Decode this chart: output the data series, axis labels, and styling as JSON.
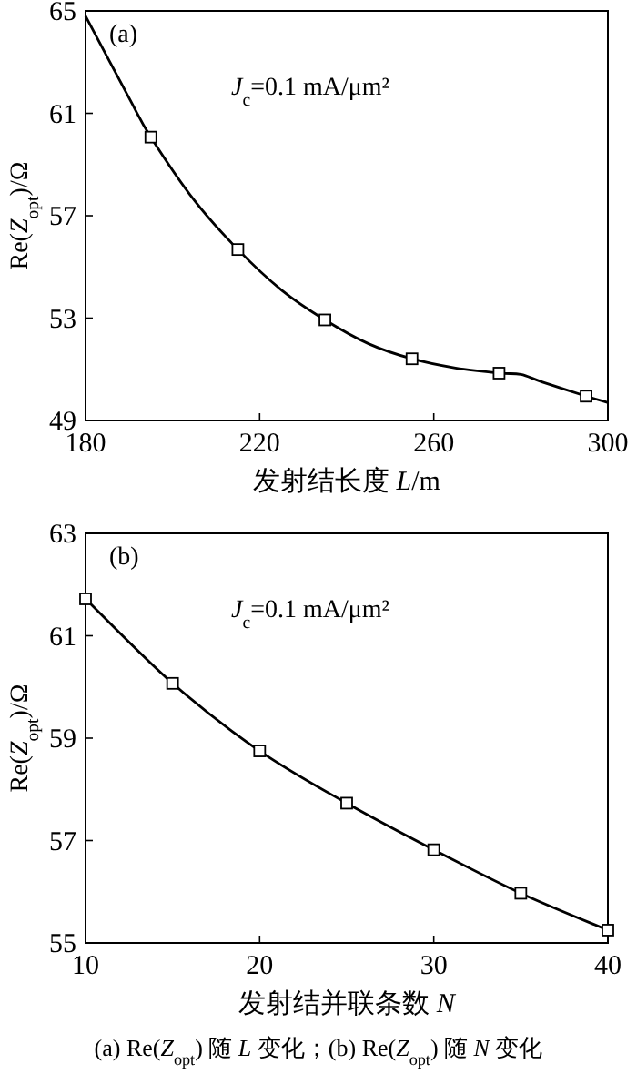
{
  "chart_data": [
    {
      "type": "line",
      "xlabel": "发射结长度 *L*/m",
      "ylabel": "Re(*Z*$_{opt}$)/Ω",
      "annotations": [
        "(a)",
        "*J*$_{c}$=0.1 mA/μm²"
      ],
      "xlim": [
        180,
        300
      ],
      "xticks": [
        180,
        220,
        260,
        300
      ],
      "ylim": [
        49,
        65
      ],
      "yticks": [
        49,
        53,
        57,
        61,
        65
      ],
      "grid": false,
      "series": [
        {
          "type": "line",
          "color": "#000000",
          "marker": "none",
          "x": [
            180,
            190,
            195,
            205,
            215,
            225,
            235,
            245,
            255,
            265,
            275,
            280,
            285,
            295,
            300
          ],
          "values": [
            64.8,
            61.6,
            60.07,
            57.6,
            55.68,
            54.1,
            52.93,
            52.0,
            51.41,
            51.05,
            50.85,
            50.8,
            50.5,
            49.95,
            49.7
          ]
        },
        {
          "type": "scatter",
          "color": "#000000",
          "marker": "square",
          "x": [
            195,
            215,
            235,
            255,
            275,
            295
          ],
          "values": [
            60.07,
            55.68,
            52.93,
            51.41,
            50.85,
            49.95
          ]
        }
      ]
    },
    {
      "type": "line",
      "xlabel": "发射结并联条数 *N*",
      "ylabel": "Re(*Z*$_{opt}$)/Ω",
      "annotations": [
        "(b)",
        "*J*$_{c}$=0.1 mA/μm²",
        "(a)  Re(*Z*$_{opt}$) 随 *L* 变化；(b)  Re(*Z*$_{opt}$) 随 *N* 变化"
      ],
      "xlim": [
        10,
        40
      ],
      "xticks": [
        10,
        20,
        30,
        40
      ],
      "ylim": [
        55,
        63
      ],
      "yticks": [
        55,
        57,
        59,
        61,
        63
      ],
      "grid": false,
      "series": [
        {
          "type": "line",
          "color": "#000000",
          "marker": "square",
          "x": [
            10,
            15,
            20,
            25,
            30,
            35,
            40
          ],
          "values": [
            61.72,
            60.07,
            58.75,
            57.73,
            56.82,
            55.97,
            55.25
          ]
        }
      ]
    }
  ]
}
